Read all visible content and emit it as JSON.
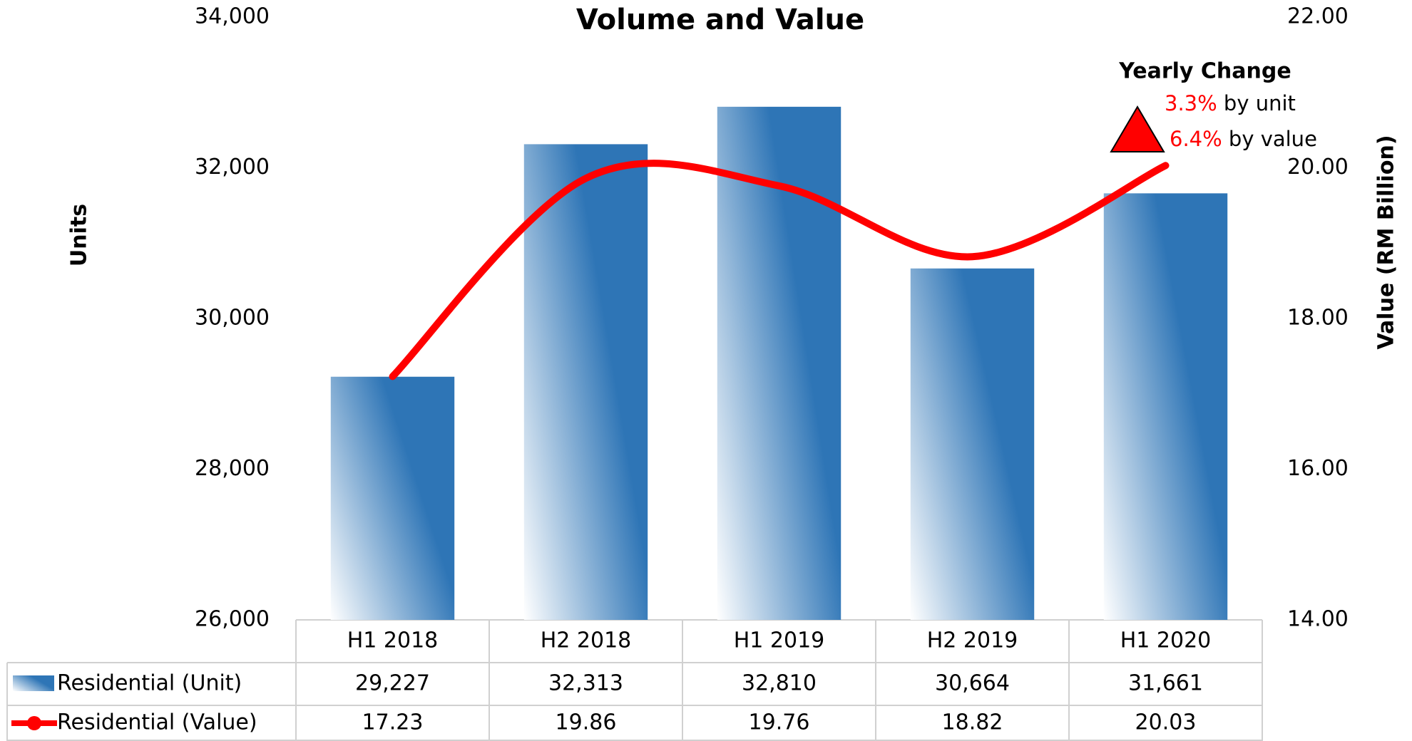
{
  "chart_data": {
    "type": "bar",
    "title": "Volume and Value",
    "categories": [
      "H1 2018",
      "H2 2018",
      "H1 2019",
      "H2 2019",
      "H1 2020"
    ],
    "series": [
      {
        "name": "Residential (Unit)",
        "color": "#2e75b6",
        "values": [
          29227,
          32313,
          32810,
          30664,
          31661
        ],
        "value_labels": [
          "29,227",
          "32,313",
          "32,810",
          "30,664",
          "31,661"
        ]
      },
      {
        "name": "Residential (Value)",
        "type": "line",
        "axis": "y2",
        "color": "#ff0000",
        "values": [
          17.23,
          19.86,
          19.76,
          18.82,
          20.03
        ]
      }
    ],
    "ylabel": "Units",
    "y2label": "Value (RM Billion)",
    "ylim": [
      26000,
      34000
    ],
    "yticks": [
      {
        "value": 26000,
        "label": "26,000"
      },
      {
        "value": 28000,
        "label": "28,000"
      },
      {
        "value": 30000,
        "label": "30,000"
      },
      {
        "value": 32000,
        "label": "32,000"
      },
      {
        "value": 34000,
        "label": "34,000"
      }
    ],
    "y2lim": [
      14,
      22
    ],
    "y2ticks": [
      {
        "value": 14,
        "label": "14.00"
      },
      {
        "value": 16,
        "label": "16.00"
      },
      {
        "value": 18,
        "label": "18.00"
      },
      {
        "value": 20,
        "label": "20.00"
      },
      {
        "value": 22,
        "label": "22.00"
      }
    ],
    "annotation": {
      "title": "Yearly Change",
      "color": "#ff0000",
      "items": [
        {
          "value": "3.3%",
          "text": "by unit"
        },
        {
          "value": "6.4%",
          "text": "by value"
        }
      ]
    }
  }
}
